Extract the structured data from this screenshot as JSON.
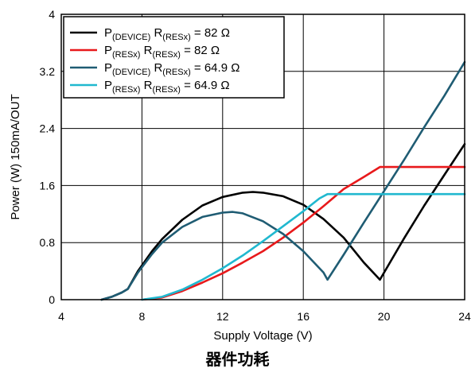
{
  "caption": "器件功耗",
  "chart_data": {
    "type": "line",
    "title": "",
    "xlabel": "Supply Voltage (V)",
    "ylabel": "Power (W) 150mA/OUT",
    "xlim": [
      4,
      24
    ],
    "ylim": [
      0,
      4
    ],
    "xticks": [
      4,
      8,
      12,
      16,
      20,
      24
    ],
    "yticks": [
      0,
      0.8,
      1.6,
      2.4,
      3.2,
      4
    ],
    "xtick_labels": [
      "4",
      "8",
      "12",
      "16",
      "20",
      "24"
    ],
    "ytick_labels": [
      "0",
      "0.8",
      "1.6",
      "2.4",
      "3.2",
      "4"
    ],
    "grid": true,
    "legend_position": "top-left",
    "series": [
      {
        "name": "P(DEVICE) R(RESx) = 82 Ω",
        "name_main": "P",
        "name_sub1": "(DEVICE)",
        "name_mid": " R",
        "name_sub2": "(RESx)",
        "name_end": " = 82 Ω",
        "color": "#000000",
        "points": [
          [
            6,
            0
          ],
          [
            6.5,
            0.04
          ],
          [
            7,
            0.1
          ],
          [
            7.3,
            0.15
          ],
          [
            7.8,
            0.4
          ],
          [
            8.5,
            0.68
          ],
          [
            9,
            0.85
          ],
          [
            10,
            1.12
          ],
          [
            11,
            1.32
          ],
          [
            12,
            1.44
          ],
          [
            13,
            1.5
          ],
          [
            13.5,
            1.51
          ],
          [
            14,
            1.5
          ],
          [
            15,
            1.45
          ],
          [
            16,
            1.33
          ],
          [
            17,
            1.13
          ],
          [
            18,
            0.87
          ],
          [
            19,
            0.52
          ],
          [
            19.8,
            0.28
          ],
          [
            20.5,
            0.62
          ],
          [
            21,
            0.86
          ],
          [
            22,
            1.32
          ],
          [
            23,
            1.75
          ],
          [
            24,
            2.18
          ]
        ]
      },
      {
        "name": "P(RESx) R(RESx) = 82 Ω",
        "name_main": "P",
        "name_sub1": "(RESx)",
        "name_mid": " R",
        "name_sub2": "(RESx)",
        "name_end": " = 82 Ω",
        "color": "#e8191b",
        "points": [
          [
            8,
            0
          ],
          [
            9,
            0.03
          ],
          [
            10,
            0.12
          ],
          [
            11,
            0.24
          ],
          [
            12,
            0.37
          ],
          [
            13,
            0.52
          ],
          [
            14,
            0.68
          ],
          [
            15,
            0.87
          ],
          [
            16,
            1.08
          ],
          [
            17,
            1.31
          ],
          [
            18,
            1.55
          ],
          [
            19,
            1.72
          ],
          [
            19.8,
            1.86
          ],
          [
            20,
            1.86
          ],
          [
            24,
            1.86
          ]
        ]
      },
      {
        "name": "P(DEVICE) R(RESx) = 64.9 Ω",
        "name_main": "P",
        "name_sub1": "(DEVICE)",
        "name_mid": " R",
        "name_sub2": "(RESx)",
        "name_end": " = 64.9 Ω",
        "color": "#1f5c73",
        "points": [
          [
            6,
            0
          ],
          [
            6.5,
            0.04
          ],
          [
            7,
            0.1
          ],
          [
            7.3,
            0.15
          ],
          [
            7.8,
            0.38
          ],
          [
            8.5,
            0.64
          ],
          [
            9,
            0.8
          ],
          [
            10,
            1.02
          ],
          [
            11,
            1.16
          ],
          [
            12,
            1.22
          ],
          [
            12.5,
            1.23
          ],
          [
            13,
            1.21
          ],
          [
            14,
            1.1
          ],
          [
            15,
            0.92
          ],
          [
            16,
            0.68
          ],
          [
            17,
            0.38
          ],
          [
            17.2,
            0.28
          ],
          [
            18,
            0.63
          ],
          [
            19,
            1.08
          ],
          [
            20,
            1.52
          ],
          [
            21,
            1.96
          ],
          [
            22,
            2.42
          ],
          [
            23,
            2.86
          ],
          [
            24,
            3.33
          ]
        ]
      },
      {
        "name": "P(RESx) R(RESx) = 64.9 Ω",
        "name_main": "P",
        "name_sub1": "(RESx)",
        "name_mid": " R",
        "name_sub2": "(RESx)",
        "name_end": " = 64.9 Ω",
        "color": "#20b8cf",
        "points": [
          [
            8,
            0
          ],
          [
            9,
            0.04
          ],
          [
            10,
            0.14
          ],
          [
            11,
            0.28
          ],
          [
            12,
            0.44
          ],
          [
            13,
            0.62
          ],
          [
            14,
            0.82
          ],
          [
            15,
            1.03
          ],
          [
            16,
            1.24
          ],
          [
            16.8,
            1.42
          ],
          [
            17.2,
            1.48
          ],
          [
            24,
            1.48
          ]
        ]
      }
    ]
  }
}
